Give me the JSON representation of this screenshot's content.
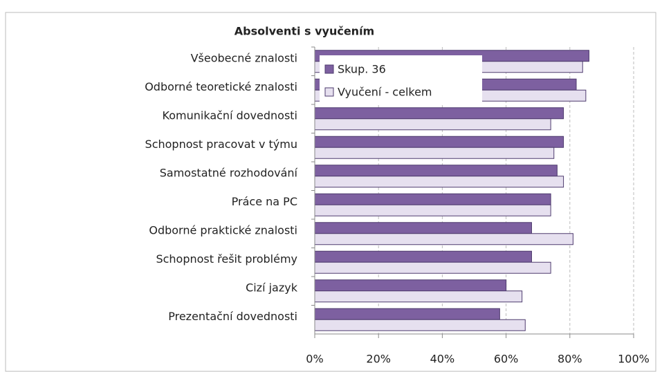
{
  "chart_data": {
    "type": "bar",
    "orientation": "horizontal",
    "title": "Absolventi s vyučením",
    "categories": [
      "Všeobecné znalosti",
      "Odborné teoretické znalosti",
      "Komunikační dovednosti",
      "Schopnost pracovat v týmu",
      "Samostatné rozhodování",
      "Práce na PC",
      "Odborné praktické znalosti",
      "Schopnost řešit problémy",
      "Cizí jazyk",
      "Prezentační dovednosti"
    ],
    "series": [
      {
        "name": "Skup. 36",
        "color": "#7d60a0",
        "values": [
          86,
          82,
          78,
          78,
          76,
          74,
          68,
          68,
          60,
          58
        ]
      },
      {
        "name": "Vyučení - celkem",
        "color": "#e6e0ef",
        "values": [
          84,
          85,
          74,
          75,
          78,
          74,
          81,
          74,
          65,
          66
        ]
      }
    ],
    "xlim": [
      0,
      100
    ],
    "xticks": [
      {
        "value": 0,
        "label": "0%"
      },
      {
        "value": 20,
        "label": "20%"
      },
      {
        "value": 40,
        "label": "40%"
      },
      {
        "value": 60,
        "label": "60%"
      },
      {
        "value": 80,
        "label": "80%"
      },
      {
        "value": 100,
        "label": "100%"
      }
    ],
    "grid": true,
    "legend": "top-left"
  }
}
